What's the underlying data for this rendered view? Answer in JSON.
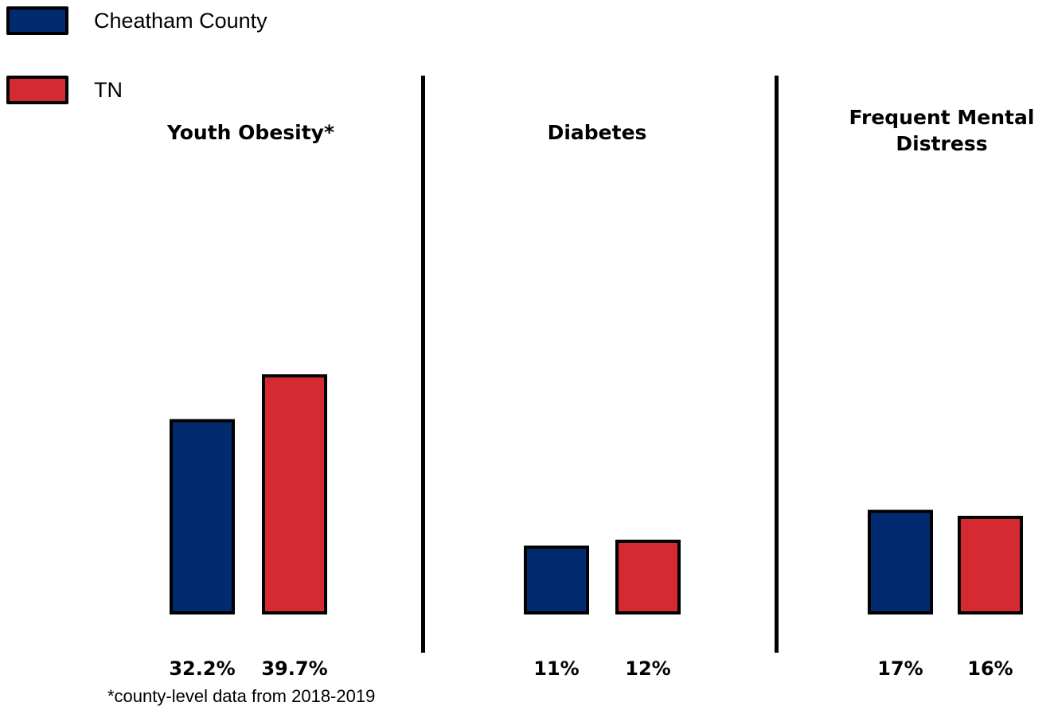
{
  "legend": {
    "items": [
      {
        "label": "Cheatham County",
        "color": "#012a6f"
      },
      {
        "label": "TN",
        "color": "#d62a33"
      }
    ]
  },
  "chart_data": {
    "type": "bar",
    "ylim": [
      0,
      40
    ],
    "series": [
      {
        "name": "Cheatham County",
        "color": "#012a6f"
      },
      {
        "name": "TN",
        "color": "#d62a33"
      }
    ],
    "panels": [
      {
        "title": "Youth Obesity*",
        "values": [
          32.2,
          39.7
        ],
        "labels": [
          "32.2%",
          "39.7%"
        ]
      },
      {
        "title": "Diabetes",
        "values": [
          11,
          12
        ],
        "labels": [
          "11%",
          "12%"
        ]
      },
      {
        "title": "Frequent Mental\nDistress",
        "values": [
          17,
          16
        ],
        "labels": [
          "17%",
          "16%"
        ]
      }
    ],
    "footnote": "*county-level data from 2018-2019"
  }
}
